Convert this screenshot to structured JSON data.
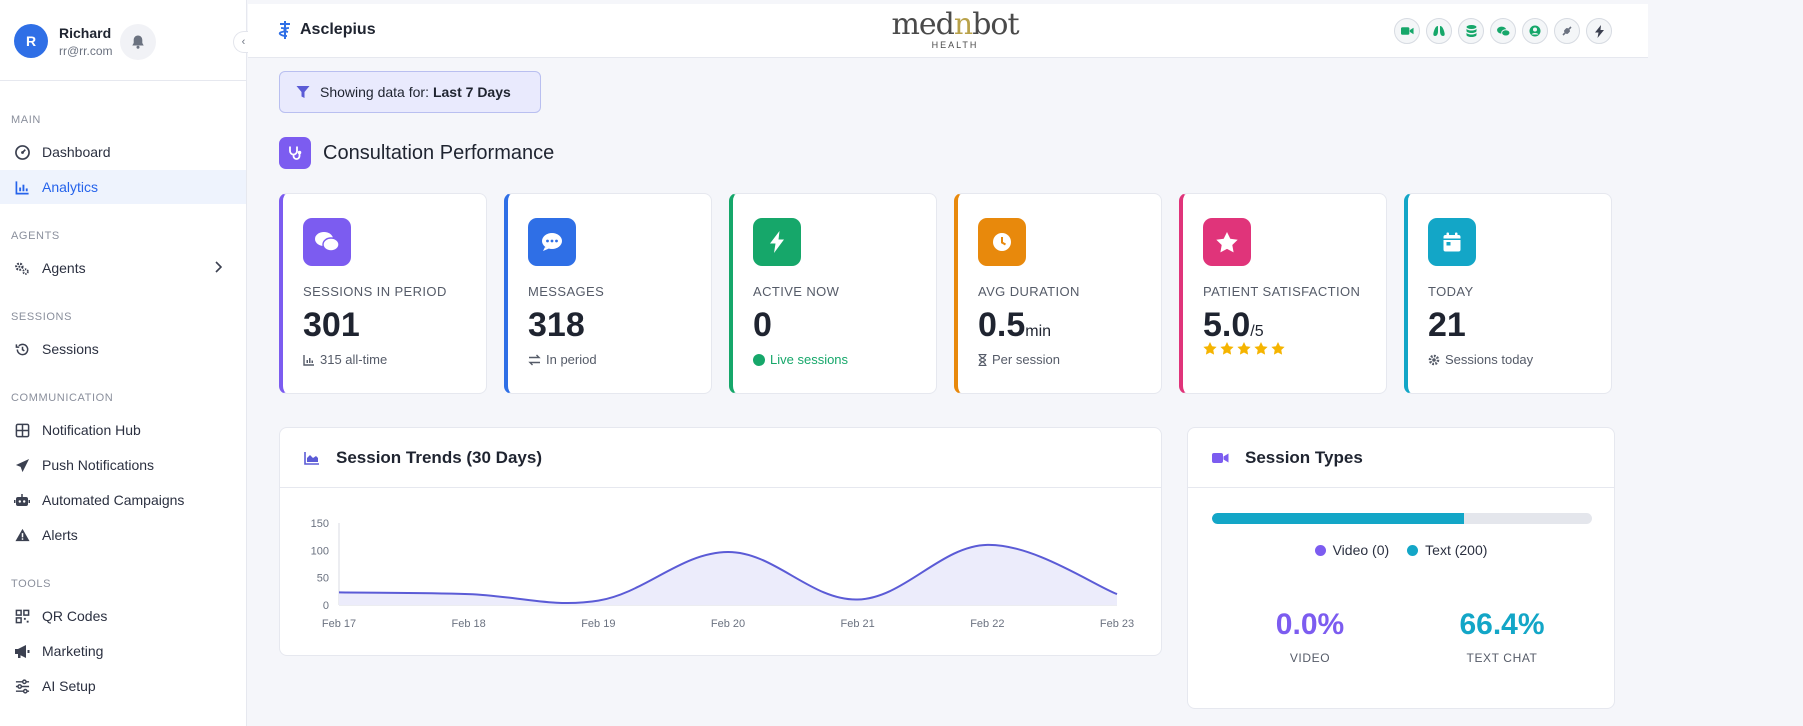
{
  "user": {
    "initial": "R",
    "name": "Richard",
    "email": "rr@rr.com"
  },
  "sidebar": {
    "sections": [
      {
        "label": "MAIN",
        "items": [
          {
            "label": "Dashboard",
            "icon": "dashboard-icon"
          },
          {
            "label": "Analytics",
            "icon": "chart-icon",
            "active": true
          }
        ]
      },
      {
        "label": "AGENTS",
        "items": [
          {
            "label": "Agents",
            "icon": "gears-icon"
          }
        ]
      },
      {
        "label": "SESSIONS",
        "items": [
          {
            "label": "Sessions",
            "icon": "history-icon"
          }
        ]
      },
      {
        "label": "COMMUNICATION",
        "items": [
          {
            "label": "Notification Hub",
            "icon": "grid-icon"
          },
          {
            "label": "Push Notifications",
            "icon": "paper-plane-icon"
          },
          {
            "label": "Automated Campaigns",
            "icon": "robot-icon"
          },
          {
            "label": "Alerts",
            "icon": "warning-icon"
          }
        ]
      },
      {
        "label": "TOOLS",
        "items": [
          {
            "label": "QR Codes",
            "icon": "qr-icon"
          },
          {
            "label": "Marketing",
            "icon": "megaphone-icon"
          },
          {
            "label": "AI Setup",
            "icon": "sliders-icon"
          }
        ]
      }
    ]
  },
  "topbar": {
    "brand": "Asclepius",
    "logo_main_a": "med",
    "logo_main_n": "n",
    "logo_main_b": "bot",
    "logo_sub": "HEALTH"
  },
  "filter": {
    "prefix": "Showing data for:",
    "value": "Last 7 Days"
  },
  "section_title": "Consultation Performance",
  "colors": {
    "purple": "#7c5cf0",
    "blue": "#2f6fe6",
    "green": "#16a76a",
    "orange": "#e8890c",
    "pink": "#e0347a",
    "teal": "#13a6c7"
  },
  "stats": [
    {
      "label": "SESSIONS IN PERIOD",
      "value": "301",
      "unit": "",
      "sub": "315 all-time",
      "icon": "chat-bubbles-icon"
    },
    {
      "label": "MESSAGES",
      "value": "318",
      "unit": "",
      "sub": "In period",
      "icon": "comment-dots-icon"
    },
    {
      "label": "ACTIVE NOW",
      "value": "0",
      "unit": "",
      "sub": "Live sessions",
      "icon": "bolt-icon"
    },
    {
      "label": "AVG DURATION",
      "value": "0.5",
      "unit": "min",
      "sub": "Per session",
      "icon": "clock-icon"
    },
    {
      "label": "PATIENT SATISFACTION",
      "value": "5.0",
      "unit": "/5",
      "sub": "",
      "rating": 5,
      "icon": "star-icon"
    },
    {
      "label": "TODAY",
      "value": "21",
      "unit": "",
      "sub": "Sessions today",
      "icon": "calendar-icon"
    }
  ],
  "trends": {
    "title": "Session Trends (30 Days)",
    "chart_data": {
      "type": "area",
      "x": [
        "Feb 17",
        "Feb 18",
        "Feb 19",
        "Feb 20",
        "Feb 21",
        "Feb 22",
        "Feb 23"
      ],
      "values": [
        23,
        20,
        8,
        97,
        10,
        110,
        20
      ],
      "yticks": [
        0,
        50,
        100,
        150
      ],
      "ylim": [
        0,
        150
      ],
      "color": "#5b5bd6"
    }
  },
  "session_types": {
    "title": "Session Types",
    "progress_fraction": 0.664,
    "legend": [
      {
        "label": "Video (0)",
        "color": "#7c5cf0"
      },
      {
        "label": "Text (200)",
        "color": "#13a6c7"
      }
    ],
    "video_pct": "0.0%",
    "video_label": "VIDEO",
    "text_pct": "66.4%",
    "text_label": "TEXT CHAT"
  }
}
